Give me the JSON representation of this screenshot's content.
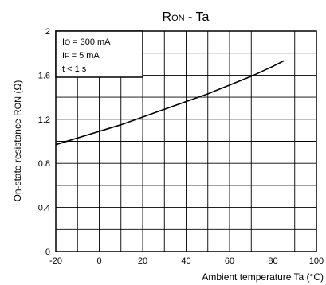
{
  "chart_data": {
    "type": "line",
    "title": {
      "main": "R",
      "sub": "ON",
      "rest": " - Ta"
    },
    "xlabel": "Ambient temperature Ta (°C)",
    "ylabel": {
      "main": "On-state resistance R",
      "sub": "ON",
      "rest": " (Ω)"
    },
    "xlim": [
      -20,
      100
    ],
    "ylim": [
      0,
      2
    ],
    "x_ticks": [
      -20,
      0,
      20,
      40,
      60,
      80,
      100
    ],
    "y_ticks": [
      0,
      0.4,
      0.8,
      1.2,
      1.6,
      2
    ],
    "y_tick_labels": [
      "0",
      "0.4",
      "0.8",
      "1.2",
      "1.6",
      "2"
    ],
    "x_minor_step": 10,
    "y_minor_step": 0.2,
    "grid": true,
    "conditions": [
      {
        "main": "I",
        "sub": "O",
        "rest": " = 300 mA"
      },
      {
        "main": "I",
        "sub": "F",
        "rest": " = 5 mA"
      },
      {
        "main": "t < 1 s",
        "sub": "",
        "rest": ""
      }
    ],
    "series": [
      {
        "x": [
          -20,
          -10,
          0,
          10,
          20,
          30,
          40,
          50,
          60,
          70,
          80,
          85
        ],
        "y": [
          0.97,
          1.03,
          1.09,
          1.15,
          1.22,
          1.29,
          1.36,
          1.43,
          1.51,
          1.59,
          1.68,
          1.73
        ]
      }
    ]
  }
}
